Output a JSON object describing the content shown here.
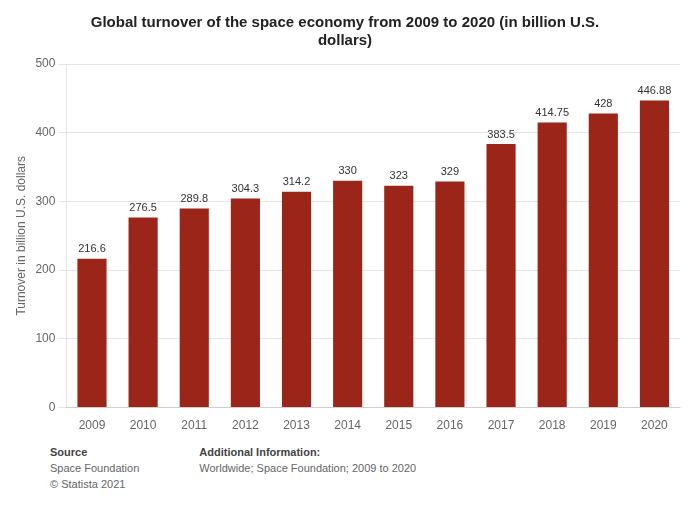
{
  "chart_data": {
    "type": "bar",
    "title": "Global turnover of the space economy from 2009 to 2020 (in billion U.S.\ndollars)",
    "ylabel": "Turnover in billion U.S. dollars",
    "categories": [
      "2009",
      "2010",
      "2011",
      "2012",
      "2013",
      "2014",
      "2015",
      "2016",
      "2017",
      "2018",
      "2019",
      "2020"
    ],
    "values": [
      216.6,
      276.5,
      289.8,
      304.3,
      314.2,
      330,
      323,
      329,
      383.5,
      414.75,
      428,
      446.88
    ],
    "color": "#9b2518",
    "ylim": [
      0,
      500
    ],
    "yticks": [
      0,
      100,
      200,
      300,
      400,
      500
    ],
    "grid": true,
    "data_labels": true,
    "annotations": [
      [
        "Source",
        "Space Foundation",
        "© Statista 2021"
      ],
      [
        "Additional Information:",
        "Worldwide; Space Foundation; 2009 to 2020"
      ]
    ]
  }
}
